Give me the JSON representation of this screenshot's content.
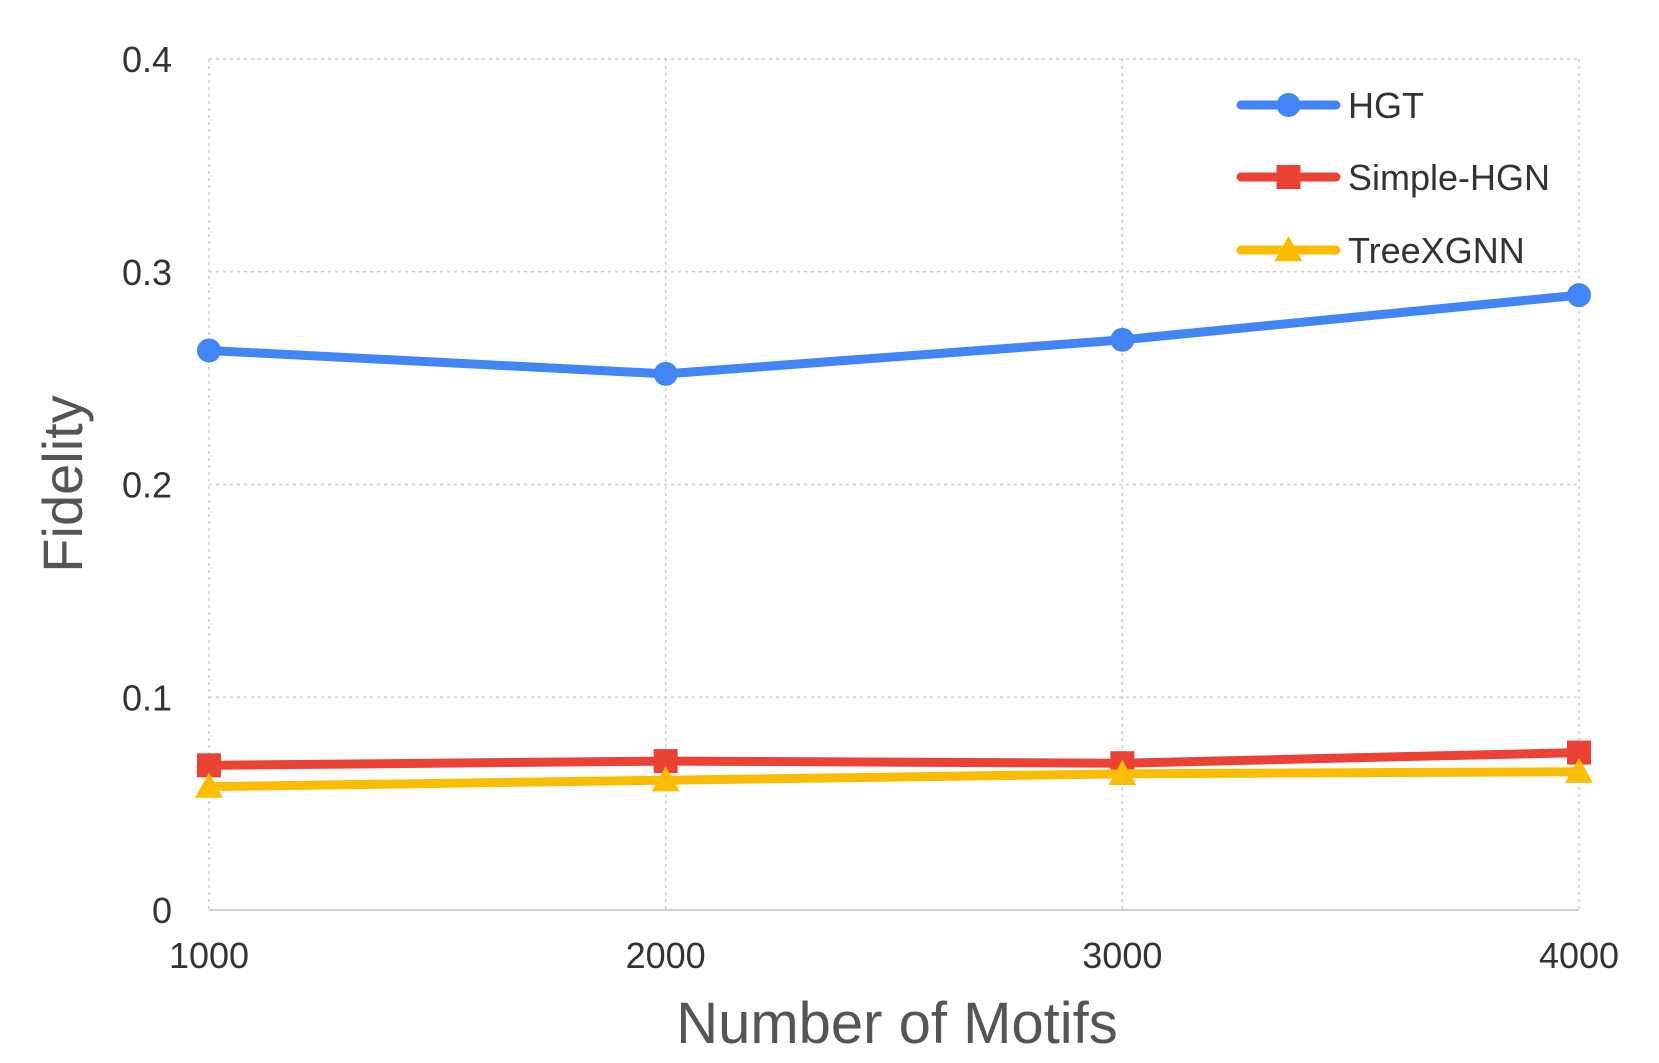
{
  "chart_data": {
    "type": "line",
    "xlabel": "Number of Motifs",
    "ylabel": "Fidelity",
    "x": [
      1000,
      2000,
      3000,
      4000
    ],
    "x_tick_labels": [
      "1000",
      "2000",
      "3000",
      "4000"
    ],
    "ylim": [
      0,
      0.4
    ],
    "y_ticks": [
      0,
      0.1,
      0.2,
      0.3,
      0.4
    ],
    "y_tick_labels": [
      "0",
      "0.1",
      "0.2",
      "0.3",
      "0.4"
    ],
    "grid": true,
    "legend_position": "top-right",
    "series": [
      {
        "name": "HGT",
        "values": [
          0.263,
          0.252,
          0.268,
          0.289
        ],
        "color": "#4285f4",
        "marker": "circle"
      },
      {
        "name": "Simple-HGN",
        "values": [
          0.068,
          0.07,
          0.069,
          0.074
        ],
        "color": "#ea4335",
        "marker": "square"
      },
      {
        "name": "TreeXGNN",
        "values": [
          0.058,
          0.061,
          0.064,
          0.065
        ],
        "color": "#fbbc04",
        "marker": "triangle"
      }
    ]
  }
}
